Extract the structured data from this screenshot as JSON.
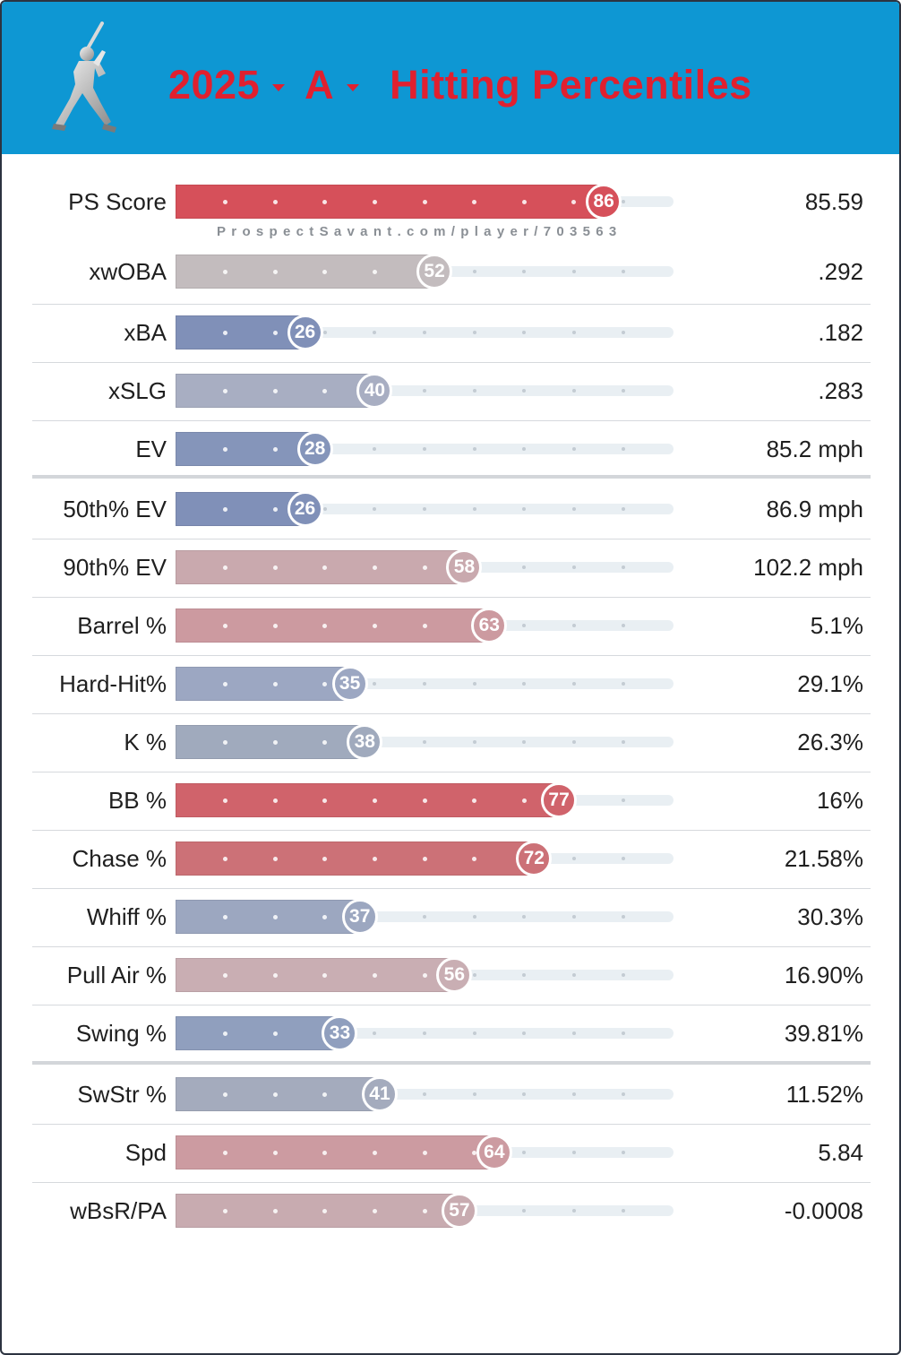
{
  "header": {
    "year": "2025",
    "level": "A",
    "title": "Hitting Percentiles",
    "icon": "batter-silhouette-icon",
    "background_color": "#0e97d3",
    "title_color": "#e0202f"
  },
  "watermark": "ProspectSavant.com/player/703563",
  "chart_data": {
    "type": "bar",
    "title": "2025 A Hitting Percentiles",
    "xlim": [
      0,
      100
    ],
    "categories": [
      "PS Score",
      "xwOBA",
      "xBA",
      "xSLG",
      "EV",
      "50th% EV",
      "90th% EV",
      "Barrel %",
      "Hard-Hit%",
      "K %",
      "BB %",
      "Chase %",
      "Whiff %",
      "Pull Air %",
      "Swing %",
      "SwStr %",
      "Spd",
      "wBsR/PA"
    ],
    "values": [
      86,
      52,
      26,
      40,
      28,
      26,
      58,
      63,
      35,
      38,
      77,
      72,
      37,
      56,
      33,
      41,
      64,
      57
    ],
    "stat_values": [
      "85.59",
      ".292",
      ".182",
      ".283",
      "85.2 mph",
      "86.9 mph",
      "102.2 mph",
      "5.1%",
      "29.1%",
      "26.3%",
      "16%",
      "21.58%",
      "30.3%",
      "16.90%",
      "39.81%",
      "11.52%",
      "5.84",
      "-0.0008"
    ],
    "bar_colors": [
      "#d6505a",
      "#c3bcbe",
      "#8090b8",
      "#a8aec2",
      "#8595ba",
      "#8090b8",
      "#c9a9ae",
      "#cc9aa0",
      "#9ca7c2",
      "#a0aabd",
      "#d0636b",
      "#cc7177",
      "#9ca7c0",
      "#c9aeb3",
      "#909fbe",
      "#a4abbd",
      "#cc9ba1",
      "#c8abb0"
    ]
  }
}
